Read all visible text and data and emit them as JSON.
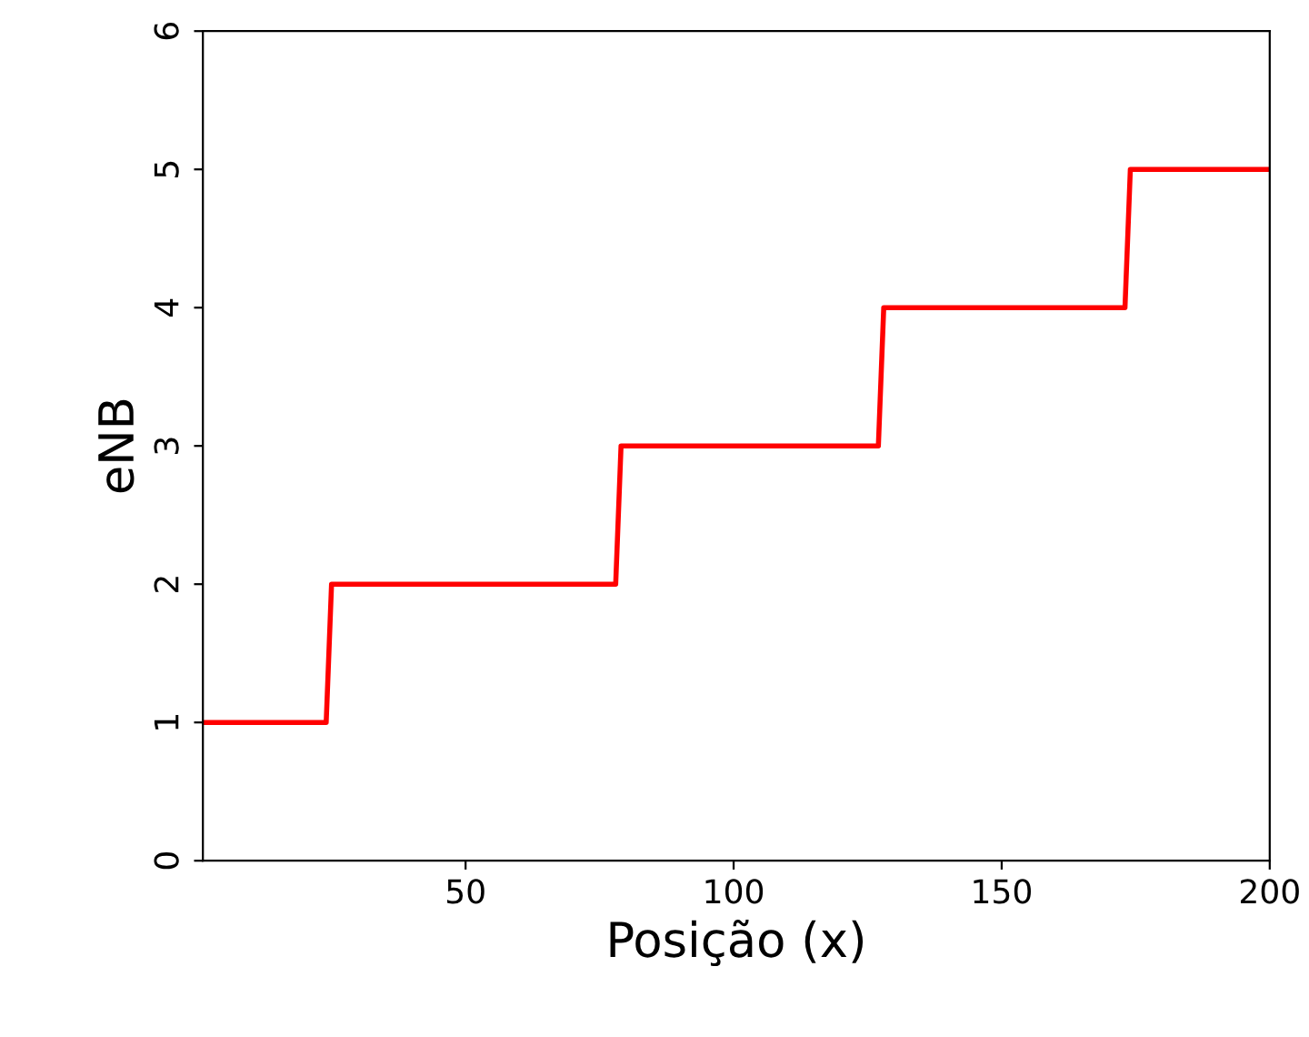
{
  "chart_data": {
    "type": "line",
    "xlabel": "Posição (x)",
    "ylabel": "eNB",
    "series": [
      {
        "color": "#ff0000",
        "x": [
          1,
          24,
          25,
          78,
          79,
          127,
          128,
          173,
          174,
          200
        ],
        "values": [
          1,
          1,
          2,
          2,
          3,
          3,
          4,
          4,
          5,
          5
        ]
      }
    ],
    "xlim": [
      1,
      200
    ],
    "xticks": [
      50,
      100,
      150,
      200
    ],
    "ylim": [
      0,
      6
    ],
    "yticks": [
      0,
      1,
      2,
      3,
      4,
      5,
      6
    ],
    "grid": false,
    "legend": false,
    "marker": "none",
    "line_style": "solid"
  }
}
